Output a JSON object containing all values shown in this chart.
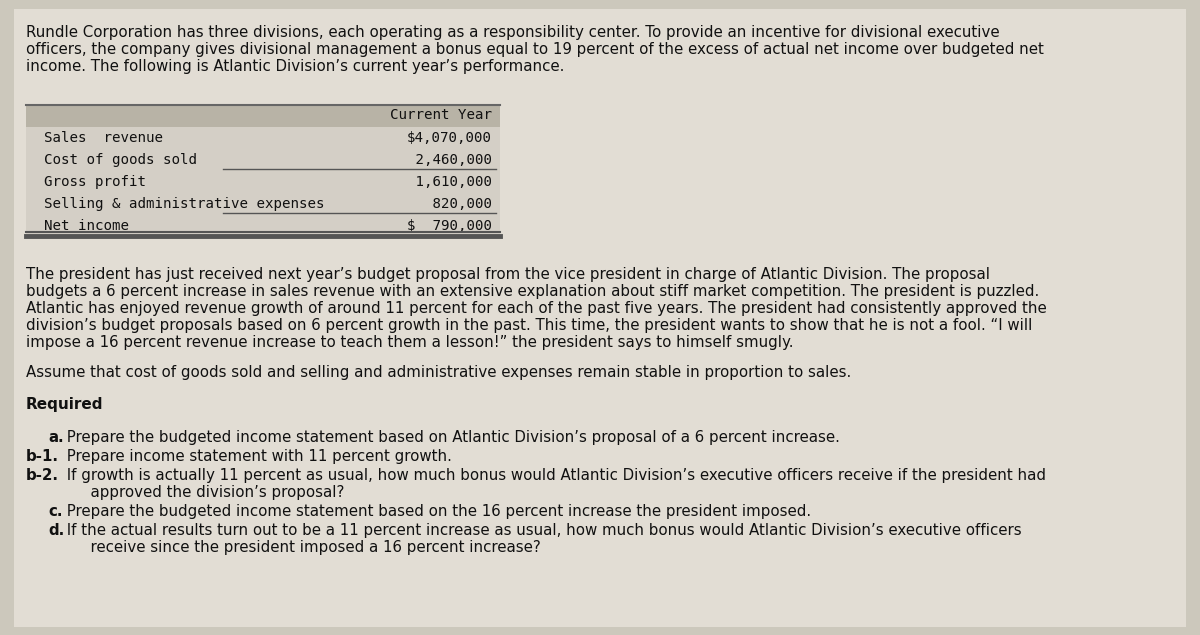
{
  "bg_color": "#ccc8bc",
  "inner_bg_color": "#e2ddd4",
  "text_color": "#111111",
  "para1_line1": "Rundle Corporation has three divisions, each operating as a responsibility center. To provide an incentive for divisional executive",
  "para1_line2": "officers, the company gives divisional management a bonus equal to 19 percent of the excess of actual net income over budgeted net",
  "para1_line3": "income. The following is Atlantic Division’s current year’s performance.",
  "table_header": "Current Year",
  "table_rows": [
    [
      "Sales  revenue",
      "$4,070,000"
    ],
    [
      "Cost of goods sold",
      " 2,460,000"
    ],
    [
      "Gross profit",
      " 1,610,000"
    ],
    [
      "Selling & administrative expenses",
      "   820,000"
    ],
    [
      "Net income",
      "$  790,000"
    ]
  ],
  "underline_after_row": [
    1,
    3
  ],
  "double_underline_after_row": 4,
  "para2_line1": "The president has just received next year’s budget proposal from the vice president in charge of Atlantic Division. The proposal",
  "para2_line2": "budgets a 6 percent increase in sales revenue with an extensive explanation about stiff market competition. The president is puzzled.",
  "para2_line3": "Atlantic has enjoyed revenue growth of around 11 percent for each of the past five years. The president had consistently approved the",
  "para2_line4": "division’s budget proposals based on 6 percent growth in the past. This time, the president wants to show that he is not a fool. “I will",
  "para2_line5": "impose a 16 percent revenue increase to teach them a lesson!” the president says to himself smugly.",
  "para3": "Assume that cost of goods sold and selling and administrative expenses remain stable in proportion to sales.",
  "required_label": "Required",
  "req_a_bold": "a.",
  "req_a_text": " Prepare the budgeted income statement based on Atlantic Division’s proposal of a 6 percent increase.",
  "req_b1_bold": "b-1.",
  "req_b1_text": " Prepare income statement with 11 percent growth.",
  "req_b2_bold": "b-2.",
  "req_b2_text1": " If growth is actually 11 percent as usual, how much bonus would Atlantic Division’s executive officers receive if the president had",
  "req_b2_text2": "      approved the division’s proposal?",
  "req_c_bold": "c.",
  "req_c_text": " Prepare the budgeted income statement based on the 16 percent increase the president imposed.",
  "req_d_bold": "d.",
  "req_d_text1": " If the actual results turn out to be a 11 percent increase as usual, how much bonus would Atlantic Division’s executive officers",
  "req_d_text2": "      receive since the president imposed a 16 percent increase?",
  "font_size_body": 10.8,
  "font_size_table": 10.2,
  "font_size_required_label": 11.0,
  "table_col_split": 0.27
}
